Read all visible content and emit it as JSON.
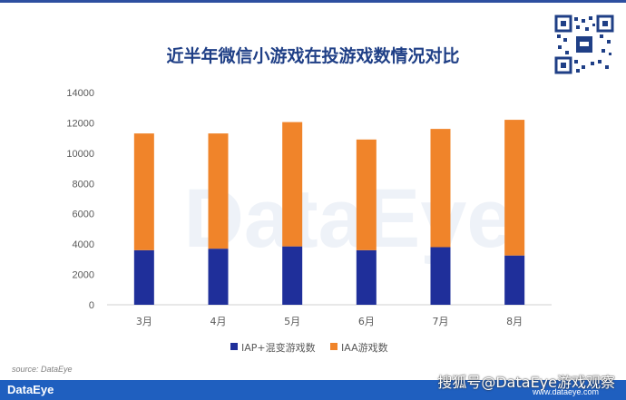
{
  "title": "近半年微信小游戏在投游戏数情况对比",
  "source": "source: DataEye",
  "footer_logo": "DataEye",
  "watermark": "搜狐号@DataEye游戏观察",
  "watermark_url": "www.dataeye.com",
  "background_watermark": "DataEye",
  "chart_data": {
    "type": "bar",
    "stacked": true,
    "title": "近半年微信小游戏在投游戏数情况对比",
    "xlabel": "",
    "ylabel": "",
    "categories": [
      "3月",
      "4月",
      "5月",
      "6月",
      "7月",
      "8月"
    ],
    "series": [
      {
        "name": "IAP+混变游戏数",
        "values": [
          3600,
          3700,
          3850,
          3600,
          3800,
          3250
        ],
        "color": "#1f2f9a"
      },
      {
        "name": "IAA游戏数",
        "values": [
          7700,
          7600,
          8200,
          7300,
          7800,
          8950
        ],
        "color": "#f0842a"
      }
    ],
    "ylim": [
      0,
      14000
    ],
    "yticks": [
      0,
      2000,
      4000,
      6000,
      8000,
      10000,
      12000,
      14000
    ],
    "grid": false,
    "legend_position": "bottom"
  }
}
